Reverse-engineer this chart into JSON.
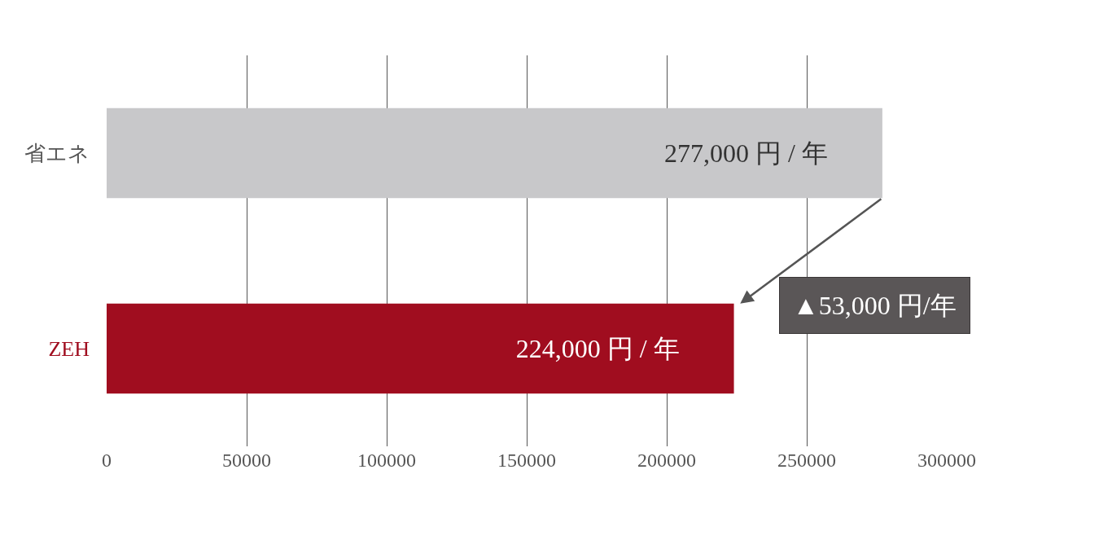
{
  "chart_data": {
    "type": "bar",
    "orientation": "horizontal",
    "categories": [
      "省エネ",
      "ZEH"
    ],
    "values": [
      277000,
      224000
    ],
    "colors": [
      "#c8c8ca",
      "#a00d1f"
    ],
    "value_labels": [
      "277,000 円 / 年",
      "224,000 円 / 年"
    ],
    "xlim": [
      0,
      300000
    ],
    "xticks": [
      0,
      50000,
      100000,
      150000,
      200000,
      250000,
      300000
    ],
    "grid": "x",
    "annotations": [
      "▲53,000 円/年"
    ]
  }
}
